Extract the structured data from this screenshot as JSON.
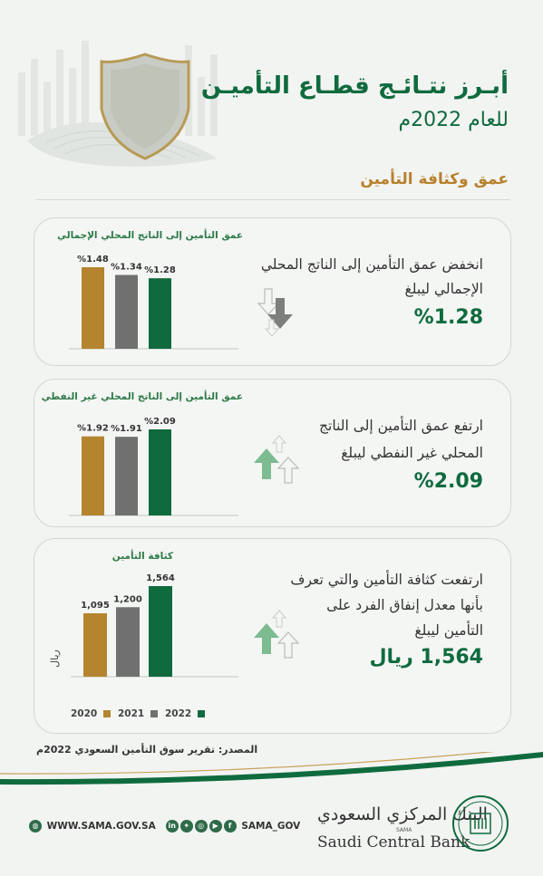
{
  "header": {
    "title_line1": "أبـرز نتـائـج قطـاع التأميـن",
    "title_line2": "للعام 2022م",
    "section_title": "عمق وكثافة التأمين"
  },
  "cards": [
    {
      "chart_title": "عمق التأمين إلى الناتج المحلي الإجمالي",
      "statement_line1": "انخفض عمق التأمين إلى الناتج المحلي",
      "statement_line2": "الإجمالي ليبلغ",
      "highlight": "%1.28",
      "trend": "down"
    },
    {
      "chart_title": "عمق التأمين إلى الناتج المحلي غير النفطي",
      "statement_line1": "ارتفع عمق التأمين إلى الناتج",
      "statement_line2": "المحلي غير النفطي ليبلغ",
      "highlight": "%2.09",
      "trend": "up"
    },
    {
      "chart_title": "كثافة التأمين",
      "y_unit": "ريال",
      "statement_line1": "ارتفعت كثافة التأمين والتي تعرف",
      "statement_line2": "بأنها معدل إنفاق الفرد على",
      "statement_line3": "التأمين ليبلغ",
      "highlight": "1,564 ريال",
      "trend": "up"
    }
  ],
  "legend": [
    "2020",
    "2021",
    "2022"
  ],
  "colors": {
    "y2020": "#b5842f",
    "y2021": "#707070",
    "y2022": "#0f6b3e",
    "title_green": "#0f6b3e",
    "gold": "#b8812d"
  },
  "chart_data": [
    {
      "type": "bar",
      "title": "عمق التأمين إلى الناتج المحلي الإجمالي",
      "categories": [
        "2020",
        "2021",
        "2022"
      ],
      "values": [
        1.48,
        1.34,
        1.28
      ],
      "labels": [
        "%1.48",
        "%1.34",
        "%1.28"
      ],
      "ylim": [
        0,
        1.6
      ],
      "grid": false
    },
    {
      "type": "bar",
      "title": "عمق التأمين إلى الناتج المحلي غير النفطي",
      "categories": [
        "2020",
        "2021",
        "2022"
      ],
      "values": [
        1.92,
        1.91,
        2.09
      ],
      "labels": [
        "%1.92",
        "%1.91",
        "%2.09"
      ],
      "ylim": [
        0,
        3.0
      ],
      "grid": false
    },
    {
      "type": "bar",
      "title": "كثافة التأمين",
      "ylabel": "ريال",
      "categories": [
        "2020",
        "2021",
        "2022"
      ],
      "values": [
        1095,
        1200,
        1564
      ],
      "labels": [
        "1,095",
        "1,200",
        "1,564"
      ],
      "ylim": [
        0,
        1800
      ],
      "grid": false
    }
  ],
  "footer": {
    "source": "المصدر: تقرير سوق التأمين السعودي 2022م",
    "website": "WWW.SAMA.GOV.SA",
    "social_handle": "SAMA_GOV",
    "social_icons": [
      "linkedin-icon",
      "twitter-icon",
      "instagram-icon",
      "youtube-icon",
      "facebook-icon"
    ],
    "bank_name_ar": "البنك المركزي السعودي",
    "bank_abbr": "SAMA",
    "bank_name_en": "Saudi Central Bank"
  }
}
